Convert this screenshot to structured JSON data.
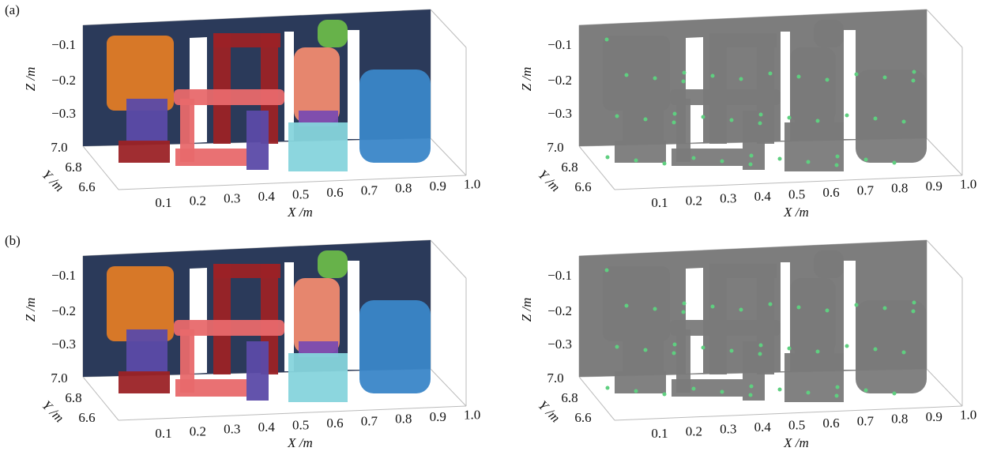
{
  "panels": [
    {
      "label": "(a)",
      "plots": [
        {
          "z_label": "Z /m",
          "y_label": "Y /m",
          "x_label": "X /m",
          "z_ticks": [
            "−0.1",
            "−0.2",
            "−0.3"
          ],
          "y_ticks": [
            "7.0",
            "6.8",
            "6.6"
          ],
          "x_ticks": [
            "0.1",
            "0.2",
            "0.3",
            "0.4",
            "0.5",
            "0.6",
            "0.7",
            "0.8",
            "0.9",
            "1.0"
          ]
        },
        {
          "z_label": "Z /m",
          "y_label": "Y /m",
          "x_label": "X /m",
          "z_ticks": [
            "−0.1",
            "−0.2",
            "−0.3"
          ],
          "y_ticks": [
            "7.0",
            "6.8",
            "6.6"
          ],
          "x_ticks": [
            "0.1",
            "0.2",
            "0.3",
            "0.4",
            "0.5",
            "0.6",
            "0.7",
            "0.8",
            "0.9",
            "1.0"
          ]
        }
      ]
    },
    {
      "label": "(b)",
      "plots": [
        {
          "z_label": "Z /m",
          "y_label": "Y /m",
          "x_label": "X /m",
          "z_ticks": [
            "−0.1",
            "−0.2",
            "−0.3"
          ],
          "y_ticks": [
            "7.0",
            "6.8",
            "6.6"
          ],
          "x_ticks": [
            "0.1",
            "0.2",
            "0.3",
            "0.4",
            "0.5",
            "0.6",
            "0.7",
            "0.8",
            "0.9",
            "1.0"
          ]
        },
        {
          "z_label": "Z /m",
          "y_label": "Y /m",
          "x_label": "X /m",
          "z_ticks": [
            "−0.1",
            "−0.2",
            "−0.3"
          ],
          "y_ticks": [
            "7.0",
            "6.8",
            "6.6"
          ],
          "x_ticks": [
            "0.1",
            "0.2",
            "0.3",
            "0.4",
            "0.5",
            "0.6",
            "0.7",
            "0.8",
            "0.9",
            "1.0"
          ]
        }
      ]
    }
  ]
}
